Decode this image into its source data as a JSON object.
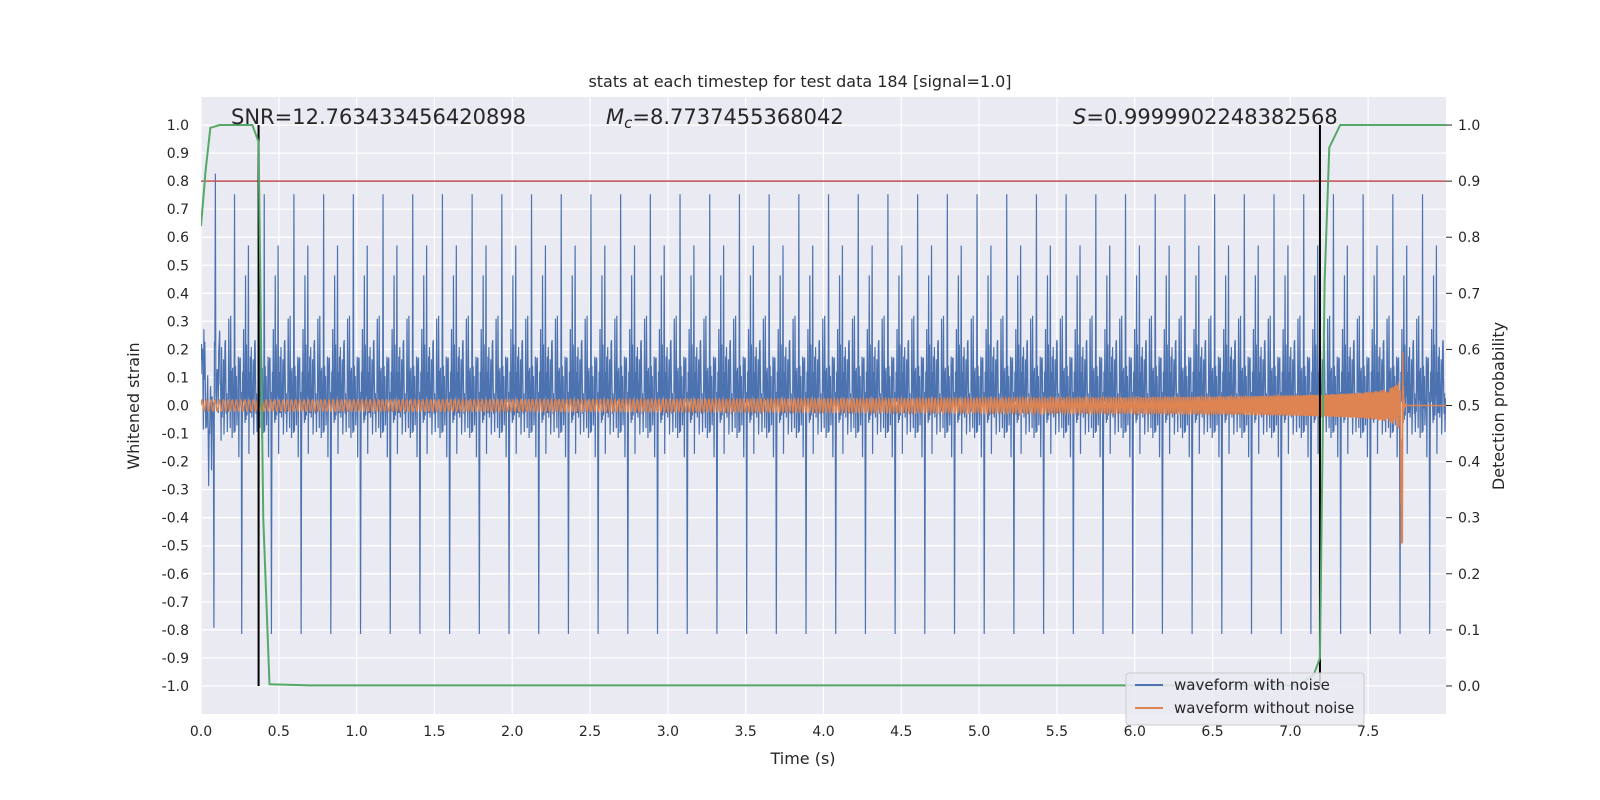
{
  "chart_data": {
    "type": "line",
    "title": "stats at each timestep for test data 184 [signal=1.0]",
    "xlabel": "Time (s)",
    "ylabel": "Whitened strain",
    "y2label": "Detection probability",
    "xlim": [
      0.0,
      8.0
    ],
    "ylim": [
      -1.1,
      1.1
    ],
    "y2lim": [
      -0.05,
      1.05
    ],
    "xticks": [
      0.0,
      0.5,
      1.0,
      1.5,
      2.0,
      2.5,
      3.0,
      3.5,
      4.0,
      4.5,
      5.0,
      5.5,
      6.0,
      6.5,
      7.0,
      7.5
    ],
    "xtick_labels": [
      "0.0",
      "0.5",
      "1.0",
      "1.5",
      "2.0",
      "2.5",
      "3.0",
      "3.5",
      "4.0",
      "4.5",
      "5.0",
      "5.5",
      "6.0",
      "6.5",
      "7.0",
      "7.5"
    ],
    "yticks": [
      1.0,
      0.9,
      0.8,
      0.7,
      0.6,
      0.5,
      0.4,
      0.3,
      0.2,
      0.1,
      0.0,
      -0.1,
      -0.2,
      -0.3,
      -0.4,
      -0.5,
      -0.6,
      -0.7,
      -0.8,
      -0.9,
      -1.0
    ],
    "ytick_labels": [
      "1.0",
      "0.9",
      "0.8",
      "0.7",
      "0.6",
      "0.5",
      "0.4",
      "0.3",
      "0.2",
      "0.1",
      "0.0",
      "-0.1",
      "-0.2",
      "-0.3",
      "-0.4",
      "-0.5",
      "-0.6",
      "-0.7",
      "-0.8",
      "-0.9",
      "-1.0"
    ],
    "y2ticks": [
      1.0,
      0.9,
      0.8,
      0.7,
      0.6,
      0.5,
      0.4,
      0.3,
      0.2,
      0.1,
      0.0
    ],
    "y2tick_labels": [
      "1.0",
      "0.9",
      "0.8",
      "0.7",
      "0.6",
      "0.5",
      "0.4",
      "0.3",
      "0.2",
      "0.1",
      "0.0"
    ],
    "threshold": {
      "axis": "y2",
      "value": 0.9,
      "color": "#c44e52"
    },
    "vlines": [
      0.37,
      7.19
    ],
    "annotations": {
      "snr": "SNR=12.763433456420898",
      "mc_symbol": "M",
      "mc_sub": "c",
      "mc_value": "=8.7737455368042",
      "s_symbol": "S",
      "s_value": "=0.9999902248382568"
    },
    "series": [
      {
        "name": "waveform with noise",
        "color": "#4c72b0",
        "description": "whitened strain, noise-dominated, mostly within ±0.6 with spikes to ±0.9",
        "core_amplitude": 0.45,
        "spike_max": 0.92,
        "t_range": [
          0.0,
          8.0
        ]
      },
      {
        "name": "waveform without noise",
        "color": "#dd8452",
        "description": "chirp signal, amplitude grows from ~0.02 to ~0.37 at merger around t=7.7 s, then ringdown to 0",
        "t_start": 0.0,
        "t_merger": 7.72,
        "t_end": 8.0,
        "amp_start": 0.02,
        "amp_merger": 0.37
      },
      {
        "name": "detection probability",
        "axis": "y2",
        "color": "#55a868",
        "t": [
          0.0,
          0.03,
          0.06,
          0.12,
          0.25,
          0.33,
          0.37,
          0.4,
          0.44,
          0.7,
          2.0,
          4.0,
          6.0,
          7.05,
          7.15,
          7.19,
          7.22,
          7.25,
          7.32,
          7.8,
          8.0
        ],
        "p": [
          0.82,
          0.92,
          0.995,
          1.0,
          1.0,
          1.0,
          0.97,
          0.3,
          0.003,
          0.001,
          0.001,
          0.001,
          0.001,
          0.001,
          0.02,
          0.05,
          0.72,
          0.96,
          1.0,
          1.0,
          1.0
        ]
      }
    ],
    "legend": {
      "placement": "lower-right",
      "entries": [
        {
          "label": "waveform with noise",
          "color": "#4c72b0"
        },
        {
          "label": "waveform without noise",
          "color": "#dd8452"
        }
      ]
    },
    "colors": {
      "background": "#eaeaf2",
      "grid": "#ffffff",
      "vline": "#000000"
    }
  }
}
